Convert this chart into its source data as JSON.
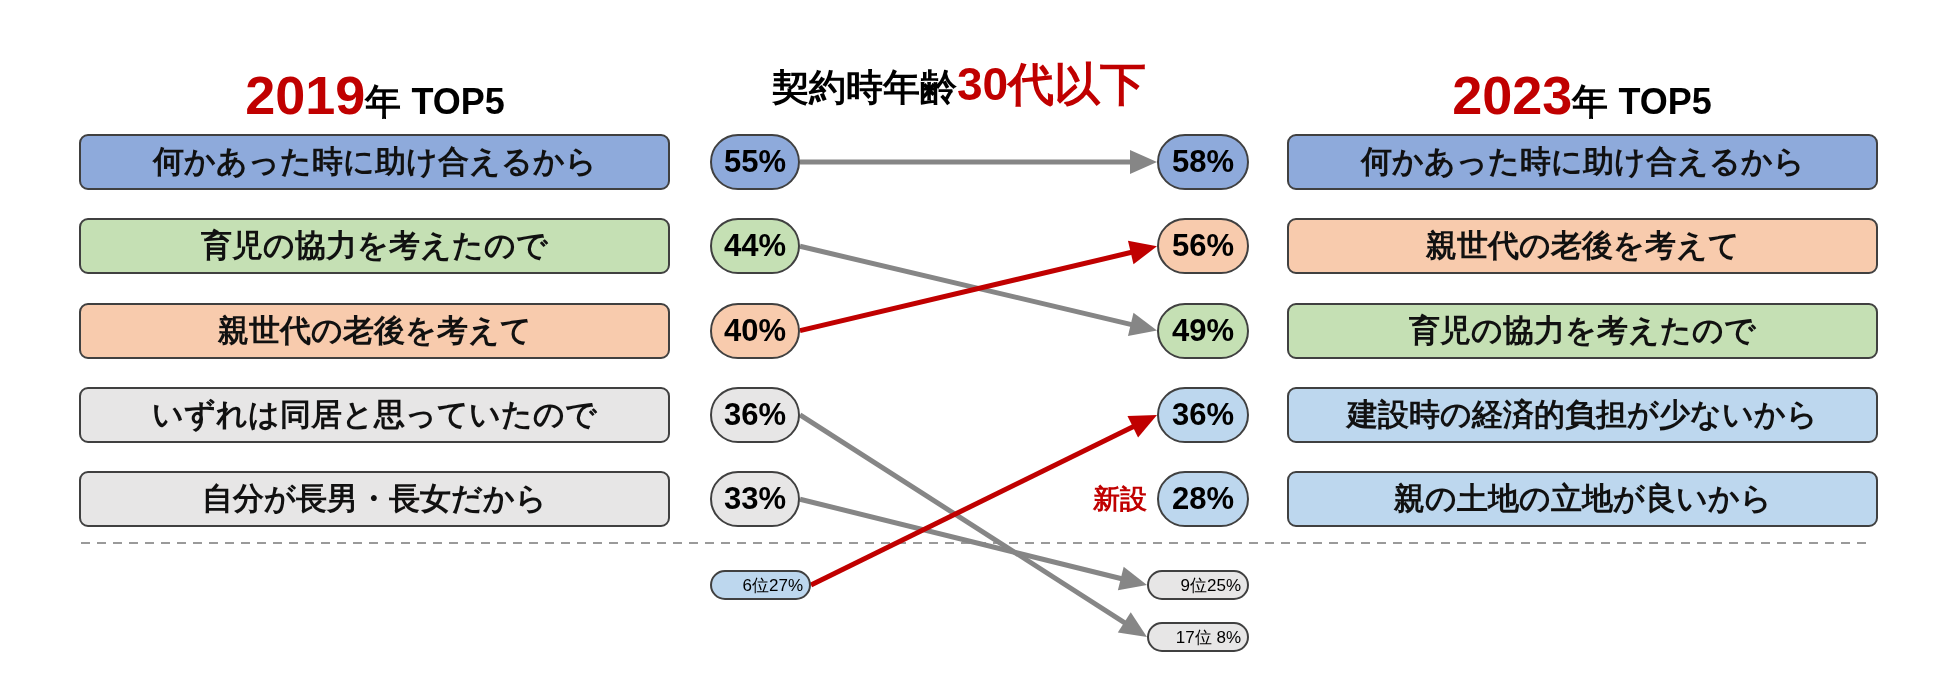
{
  "chart_data": {
    "type": "other",
    "title": "契約時年齢30代以下",
    "categories": [
      "2019年 TOP5",
      "2023年 TOP5"
    ],
    "series": [
      {
        "name": "何かあった時に助け合えるから",
        "color": "#8eaadb",
        "values": [
          55,
          58
        ],
        "value_labels": [
          "55%",
          "58%"
        ]
      },
      {
        "name": "育児の協力を考えたので",
        "color": "#c5e0b4",
        "values": [
          44,
          49
        ],
        "value_labels": [
          "44%",
          "49%"
        ]
      },
      {
        "name": "親世代の老後を考えて",
        "color": "#f8cbad",
        "values": [
          40,
          56
        ],
        "value_labels": [
          "40%",
          "56%"
        ]
      },
      {
        "name": "いずれは同居と思っていたので",
        "color": "#e7e6e6",
        "values": [
          36,
          8
        ],
        "value_labels": [
          "36%",
          "17位 8%"
        ]
      },
      {
        "name": "自分が長男・長女だから",
        "color": "#e7e6e6",
        "values": [
          33,
          25
        ],
        "value_labels": [
          "33%",
          "9位25%"
        ]
      },
      {
        "name": "建設時の経済的負担が少ないから",
        "color": "#bdd7ee",
        "values": [
          27,
          36
        ],
        "value_labels": [
          "6位27%",
          "36%"
        ]
      },
      {
        "name": "親の土地の立地が良いから",
        "color": "#bdd7ee",
        "values": [
          null,
          28
        ],
        "value_labels": [
          null,
          "28%"
        ]
      }
    ],
    "annotations": [
      "新設"
    ]
  }
}
